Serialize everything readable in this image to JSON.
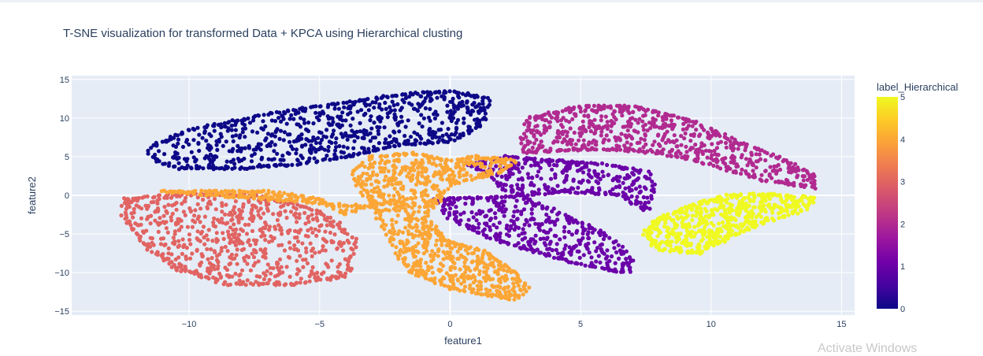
{
  "chart_data": {
    "type": "scatter",
    "title": "T-SNE visualization for transformed Data + KPCA using Hierarchical clusting",
    "xlabel": "feature1",
    "ylabel": "feature2",
    "xlim": [
      -14.5,
      15.5
    ],
    "ylim": [
      -15.5,
      15.5
    ],
    "xticks": [
      -10,
      -5,
      0,
      5,
      10,
      15
    ],
    "xtick_labels": [
      "−10",
      "−5",
      "0",
      "5",
      "10",
      "15"
    ],
    "yticks": [
      -15,
      -10,
      -5,
      0,
      5,
      10,
      15
    ],
    "ytick_labels": [
      "−15",
      "−10",
      "−5",
      "0",
      "5",
      "10",
      "15"
    ],
    "grid": true,
    "plot_background": "#e5ecf6",
    "colorbar": {
      "title": "label_Hierarchical",
      "min": 0,
      "max": 5,
      "ticks": [
        0,
        1,
        2,
        3,
        4,
        5
      ],
      "tick_labels": [
        "0",
        "1",
        "2",
        "3",
        "4",
        "5"
      ],
      "colorscale": [
        "#0d0887",
        "#46039f",
        "#7201a8",
        "#9c179e",
        "#bd3786",
        "#d8576b",
        "#ed7953",
        "#fb9f3a",
        "#fdca26",
        "#f0f921"
      ]
    },
    "clusters": [
      {
        "label": 0,
        "color": "#0d0887",
        "approx_count": 1000,
        "polygon": [
          [
            -11.5,
            6.2
          ],
          [
            -10,
            8.5
          ],
          [
            -7,
            10.5
          ],
          [
            -4,
            12
          ],
          [
            -2,
            13
          ],
          [
            0,
            13.5
          ],
          [
            1.5,
            12.5
          ],
          [
            1.2,
            9
          ],
          [
            0,
            7
          ],
          [
            -2,
            6.5
          ],
          [
            -4,
            5
          ],
          [
            -6,
            4
          ],
          [
            -8,
            3.5
          ],
          [
            -10.5,
            3.5
          ],
          [
            -11.5,
            5
          ]
        ]
      },
      {
        "label": 1,
        "color": "#6a00a8",
        "approx_count": 900,
        "polygon": [
          [
            0.8,
            4
          ],
          [
            2,
            5
          ],
          [
            4,
            4.5
          ],
          [
            6,
            4
          ],
          [
            7.5,
            3
          ],
          [
            7.8,
            1.5
          ],
          [
            7.5,
            -2
          ],
          [
            6.5,
            0
          ],
          [
            4.5,
            0.5
          ],
          [
            3,
            0
          ],
          [
            -0.5,
            -0.5
          ],
          [
            0,
            -3
          ],
          [
            1.5,
            -5.5
          ],
          [
            3.5,
            -7.5
          ],
          [
            5,
            -9
          ],
          [
            6.8,
            -10
          ],
          [
            7,
            -8.5
          ],
          [
            6,
            -5
          ],
          [
            4,
            -2
          ],
          [
            2,
            1
          ]
        ]
      },
      {
        "label": 2,
        "color": "#b12a90",
        "approx_count": 900,
        "polygon": [
          [
            2.8,
            5.5
          ],
          [
            4,
            5.8
          ],
          [
            6,
            6
          ],
          [
            8,
            5.5
          ],
          [
            10,
            4
          ],
          [
            12,
            2
          ],
          [
            14,
            1
          ],
          [
            14,
            2.5
          ],
          [
            12.5,
            5
          ],
          [
            11,
            7
          ],
          [
            9,
            10
          ],
          [
            7,
            11.5
          ],
          [
            5,
            11.5
          ],
          [
            3,
            10
          ],
          [
            2.8,
            8
          ]
        ]
      },
      {
        "label": 3,
        "color": "#e16462",
        "approx_count": 1000,
        "polygon": [
          [
            -12.5,
            -0.5
          ],
          [
            -10,
            0.2
          ],
          [
            -7.5,
            0
          ],
          [
            -5.5,
            -1.5
          ],
          [
            -4.5,
            -3
          ],
          [
            -3.6,
            -6
          ],
          [
            -3.8,
            -9
          ],
          [
            -4,
            -10.5
          ],
          [
            -6,
            -11.5
          ],
          [
            -8.5,
            -11.5
          ],
          [
            -10.5,
            -9.5
          ],
          [
            -11.5,
            -7
          ],
          [
            -12.5,
            -3
          ]
        ]
      },
      {
        "label": 4,
        "color": "#fca636",
        "approx_count": 1400,
        "polygon": [
          [
            -11,
            0.5
          ],
          [
            -7,
            0.5
          ],
          [
            -5,
            -0.5
          ],
          [
            -4,
            -2.5
          ],
          [
            -3,
            -1
          ],
          [
            -3.5,
            1
          ],
          [
            -3.8,
            3
          ],
          [
            -3,
            5
          ],
          [
            -1.5,
            5.5
          ],
          [
            0,
            4.5
          ],
          [
            1,
            5
          ],
          [
            2.5,
            4.5
          ],
          [
            2,
            3
          ],
          [
            0,
            1.5
          ],
          [
            -0.5,
            -1
          ],
          [
            -1,
            -3
          ],
          [
            0,
            -6
          ],
          [
            1.5,
            -7.5
          ],
          [
            2.5,
            -10
          ],
          [
            3,
            -12
          ],
          [
            2.5,
            -13.5
          ],
          [
            0,
            -12
          ],
          [
            -1.5,
            -10
          ],
          [
            -2,
            -7.5
          ],
          [
            -2.5,
            -4
          ],
          [
            -3,
            -1.5
          ]
        ]
      },
      {
        "label": 5,
        "color": "#f0f921",
        "approx_count": 800,
        "polygon": [
          [
            7.5,
            -4.5
          ],
          [
            8,
            -3
          ],
          [
            9,
            -1.5
          ],
          [
            10.5,
            0
          ],
          [
            12,
            0.2
          ],
          [
            14,
            -0.3
          ],
          [
            13.5,
            -2
          ],
          [
            12,
            -3.5
          ],
          [
            11,
            -5
          ],
          [
            9.5,
            -7.5
          ],
          [
            8,
            -7
          ],
          [
            7.5,
            -5.5
          ]
        ]
      }
    ]
  },
  "watermark": "Activate Windows"
}
